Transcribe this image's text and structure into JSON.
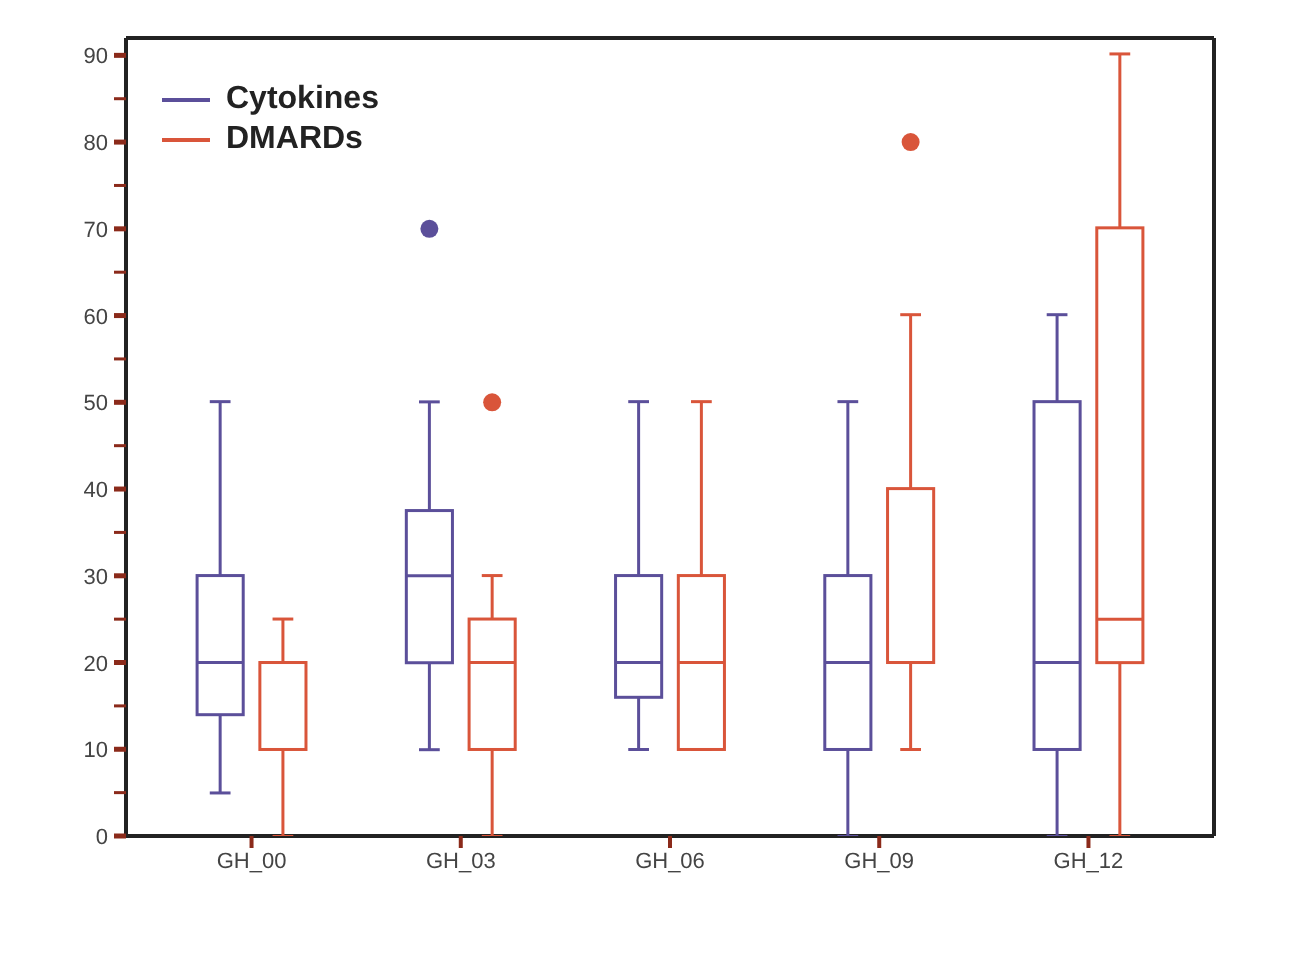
{
  "chart_data": {
    "type": "box",
    "categories": [
      "GH_00",
      "GH_03",
      "GH_06",
      "GH_09",
      "GH_12"
    ],
    "series": [
      {
        "name": "Cytokines",
        "color": "#5b4f9a",
        "boxes": [
          {
            "low": 5,
            "q1": 14,
            "median": 20,
            "q3": 30,
            "high": 50
          },
          {
            "low": 10,
            "q1": 20,
            "median": 30,
            "q3": 37.5,
            "high": 50,
            "outliers": [
              70
            ]
          },
          {
            "low": 10,
            "q1": 16,
            "median": 20,
            "q3": 30,
            "high": 50
          },
          {
            "low": 0,
            "q1": 10,
            "median": 20,
            "q3": 30,
            "high": 50
          },
          {
            "low": 0,
            "q1": 10,
            "median": 20,
            "q3": 50,
            "high": 60
          }
        ]
      },
      {
        "name": "DMARDs",
        "color": "#d9553a",
        "boxes": [
          {
            "low": 0,
            "q1": 10,
            "median": 20,
            "q3": 20,
            "high": 25
          },
          {
            "low": 0,
            "q1": 10,
            "median": 20,
            "q3": 25,
            "high": 30,
            "outliers": [
              50
            ]
          },
          {
            "low": 10,
            "q1": 10,
            "median": 20,
            "q3": 30,
            "high": 50
          },
          {
            "low": 10,
            "q1": 20,
            "median": 20,
            "q3": 40,
            "high": 60,
            "outliers": [
              80
            ]
          },
          {
            "low": 0,
            "q1": 20,
            "median": 25,
            "q3": 70,
            "high": 90
          }
        ]
      }
    ],
    "ylim": [
      0,
      92
    ],
    "yticks": [
      0,
      {
        "value": 5,
        "label": null
      },
      10,
      {
        "value": 15,
        "label": null
      },
      20,
      {
        "value": 25,
        "label": null
      },
      30,
      {
        "value": 35,
        "label": null
      },
      40,
      {
        "value": 45,
        "label": null
      },
      50,
      {
        "value": 55,
        "label": null
      },
      60,
      {
        "value": 65,
        "label": null
      },
      70,
      {
        "value": 75,
        "label": null
      },
      80,
      {
        "value": 85,
        "label": null
      },
      90
    ],
    "grid": false,
    "legend": "top left"
  }
}
